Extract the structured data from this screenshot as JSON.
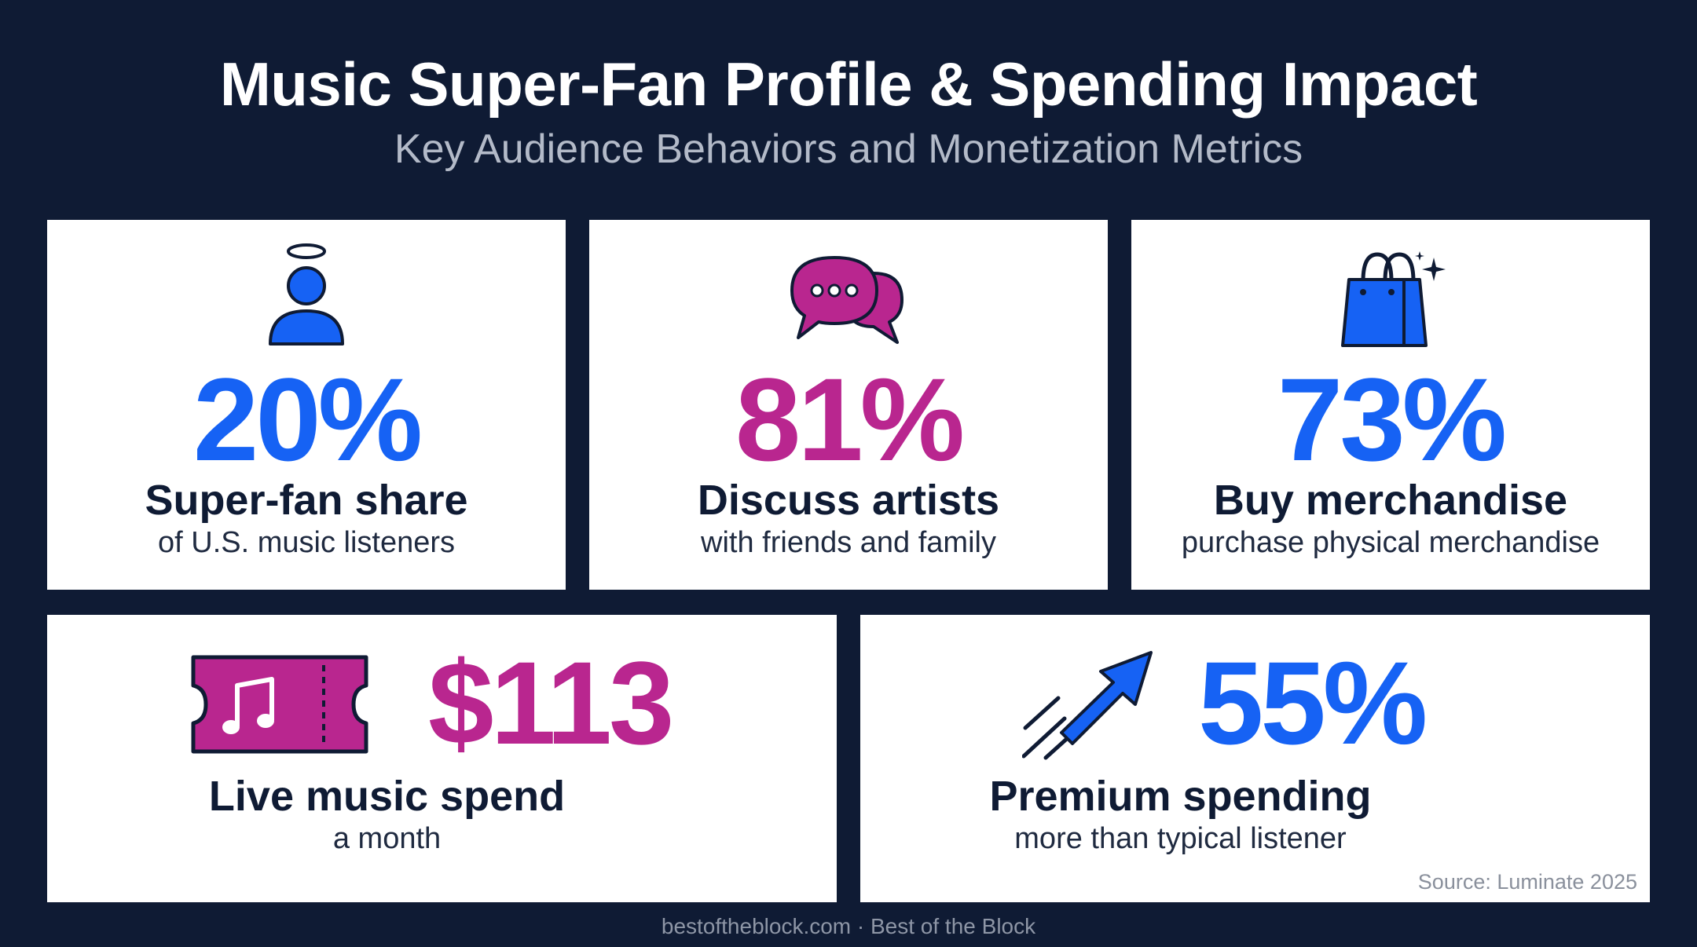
{
  "header": {
    "title": "Music Super-Fan Profile & Spending Impact",
    "subtitle": "Key Audience Behaviors and Monetization Metrics"
  },
  "colors": {
    "background": "#0f1b34",
    "blue": "#1662f4",
    "magenta": "#b9268f",
    "card": "#ffffff",
    "text_dark": "#0f1b34"
  },
  "cards": [
    {
      "icon": "superfan-person-halo-icon",
      "value": "20%",
      "label": "Super-fan share",
      "description": "of U.S. music listeners"
    },
    {
      "icon": "chat-bubbles-icon",
      "value": "81%",
      "label": "Discuss artists",
      "description": "with friends and family"
    },
    {
      "icon": "shopping-bag-sparkle-icon",
      "value": "73%",
      "label": "Buy merchandise",
      "description": "purchase physical merchandise"
    },
    {
      "icon": "music-ticket-icon",
      "value": "$113",
      "label": "Live music spend",
      "description": "a month"
    },
    {
      "icon": "upward-arrow-icon",
      "value": "55%",
      "label": "Premium spending",
      "description": "more than typical listener"
    }
  ],
  "source": "Source: Luminate 2025",
  "footer": "bestoftheblock.com · Best of the Block"
}
